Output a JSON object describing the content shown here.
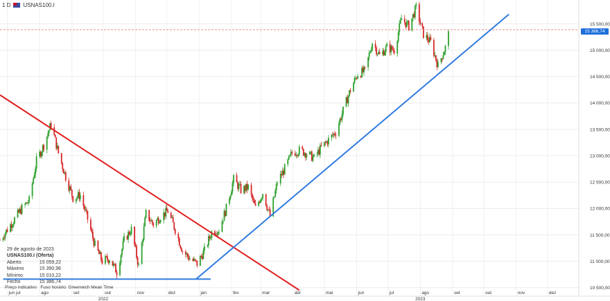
{
  "header": {
    "timeframe": "1 D",
    "symbol": "USNAS100.I"
  },
  "info": {
    "date": "29 de agosto de 2023",
    "title": "USNAS100.I (Oferta)",
    "rows": [
      {
        "label": "Aberto",
        "value": "15 059,22"
      },
      {
        "label": "Máximo",
        "value": "15 390,96"
      },
      {
        "label": "Mínimo",
        "value": "15 010,22"
      },
      {
        "label": "Fecho",
        "value": "15 386,74"
      }
    ]
  },
  "footer": {
    "price_type": "Preço indicativo",
    "timezone": "Fuso horário: Greenwich Mean Time"
  },
  "price_tag": "15 386,74",
  "colors": {
    "up": "#2ca02c",
    "down": "#d62728",
    "trend_down": "#e01e1e",
    "trend_up": "#2f7be0",
    "support": "#2f7be0",
    "price_line": "#e08080"
  },
  "chart_data": {
    "type": "candlestick",
    "y_ticks": [
      10500,
      11000,
      11500,
      12000,
      12500,
      13000,
      13500,
      14000,
      14500,
      15000,
      15500
    ],
    "y_tick_labels": [
      "10 500,00",
      "11 000,00",
      "11 500,00",
      "12 000,00",
      "12 500,00",
      "13 000,00",
      "13 500,00",
      "14 000,00",
      "14 500,00",
      "15 000,00",
      "15 500,00"
    ],
    "ylim": [
      10350,
      15950
    ],
    "x_ticks": [
      {
        "label": "jun jul",
        "date": "2022-07-01"
      },
      {
        "label": "ago",
        "date": "2022-08-01"
      },
      {
        "label": "set",
        "date": "2022-09-01"
      },
      {
        "label": "out",
        "date": "2022-10-01"
      },
      {
        "label": "nov",
        "date": "2022-11-01"
      },
      {
        "label": "dez",
        "date": "2022-12-01"
      },
      {
        "label": "jan",
        "date": "2023-01-01"
      },
      {
        "label": "fev",
        "date": "2023-02-01"
      },
      {
        "label": "mar",
        "date": "2023-03-01"
      },
      {
        "label": "abr",
        "date": "2023-04-01"
      },
      {
        "label": "mai",
        "date": "2023-05-01"
      },
      {
        "label": "jun",
        "date": "2023-06-01"
      },
      {
        "label": "jul",
        "date": "2023-07-01"
      },
      {
        "label": "ago",
        "date": "2023-08-01"
      },
      {
        "label": "set",
        "date": "2023-09-01"
      },
      {
        "label": "out",
        "date": "2023-10-01"
      },
      {
        "label": "nov",
        "date": "2023-11-01"
      },
      {
        "label": "dez",
        "date": "2023-12-01"
      }
    ],
    "year_labels": [
      {
        "label": "2022",
        "date": "2022-10-01"
      },
      {
        "label": "2023",
        "date": "2023-08-01"
      }
    ],
    "xlim": [
      "2022-06-24",
      "2023-12-31"
    ],
    "last_price": 15386.74,
    "candles_weekly_close": [
      [
        "2022-06-24",
        11400
      ],
      [
        "2022-07-01",
        11600
      ],
      [
        "2022-07-08",
        11800
      ],
      [
        "2022-07-15",
        12000
      ],
      [
        "2022-07-22",
        12150
      ],
      [
        "2022-07-29",
        12900
      ],
      [
        "2022-08-05",
        13200
      ],
      [
        "2022-08-12",
        13600
      ],
      [
        "2022-08-19",
        13050
      ],
      [
        "2022-08-26",
        12600
      ],
      [
        "2022-09-02",
        12200
      ],
      [
        "2022-09-09",
        12250
      ],
      [
        "2022-09-16",
        11800
      ],
      [
        "2022-09-23",
        11300
      ],
      [
        "2022-09-30",
        11000
      ],
      [
        "2022-10-07",
        11050
      ],
      [
        "2022-10-14",
        10800
      ],
      [
        "2022-10-21",
        11400
      ],
      [
        "2022-10-28",
        11600
      ],
      [
        "2022-11-04",
        10900
      ],
      [
        "2022-11-11",
        11900
      ],
      [
        "2022-11-18",
        11700
      ],
      [
        "2022-11-25",
        11850
      ],
      [
        "2022-12-02",
        11950
      ],
      [
        "2022-12-09",
        11600
      ],
      [
        "2022-12-16",
        11200
      ],
      [
        "2022-12-23",
        11050
      ],
      [
        "2022-12-30",
        10950
      ],
      [
        "2023-01-06",
        11200
      ],
      [
        "2023-01-13",
        11550
      ],
      [
        "2023-01-20",
        11600
      ],
      [
        "2023-01-27",
        12000
      ],
      [
        "2023-02-03",
        12550
      ],
      [
        "2023-02-10",
        12350
      ],
      [
        "2023-02-17",
        12400
      ],
      [
        "2023-02-24",
        12000
      ],
      [
        "2023-03-03",
        12300
      ],
      [
        "2023-03-10",
        11850
      ],
      [
        "2023-03-17",
        12500
      ],
      [
        "2023-03-24",
        12750
      ],
      [
        "2023-03-31",
        13050
      ],
      [
        "2023-04-07",
        13100
      ],
      [
        "2023-04-14",
        13050
      ],
      [
        "2023-04-21",
        12950
      ],
      [
        "2023-04-28",
        13150
      ],
      [
        "2023-05-05",
        13300
      ],
      [
        "2023-05-12",
        13450
      ],
      [
        "2023-05-19",
        13850
      ],
      [
        "2023-05-26",
        14250
      ],
      [
        "2023-06-02",
        14550
      ],
      [
        "2023-06-09",
        14600
      ],
      [
        "2023-06-16",
        15150
      ],
      [
        "2023-06-23",
        14900
      ],
      [
        "2023-06-30",
        15050
      ],
      [
        "2023-07-07",
        15000
      ],
      [
        "2023-07-14",
        15600
      ],
      [
        "2023-07-21",
        15450
      ],
      [
        "2023-07-28",
        15800
      ],
      [
        "2023-08-04",
        15300
      ],
      [
        "2023-08-11",
        15150
      ],
      [
        "2023-08-18",
        14700
      ],
      [
        "2023-08-25",
        15050
      ],
      [
        "2023-08-29",
        15386.74
      ]
    ],
    "trendlines": [
      {
        "name": "resistance",
        "color": "#e01e1e",
        "from": [
          "2022-06-24",
          14150
        ],
        "to": [
          "2023-04-07",
          10450
        ]
      },
      {
        "name": "support-rising",
        "color": "#2f7be0",
        "from": [
          "2022-12-29",
          10660
        ],
        "to": [
          "2023-10-25",
          15680
        ]
      },
      {
        "name": "support-horizontal",
        "color": "#2f7be0",
        "from": [
          "2022-06-27",
          10660
        ],
        "to": [
          "2023-01-12",
          10660
        ]
      }
    ]
  }
}
